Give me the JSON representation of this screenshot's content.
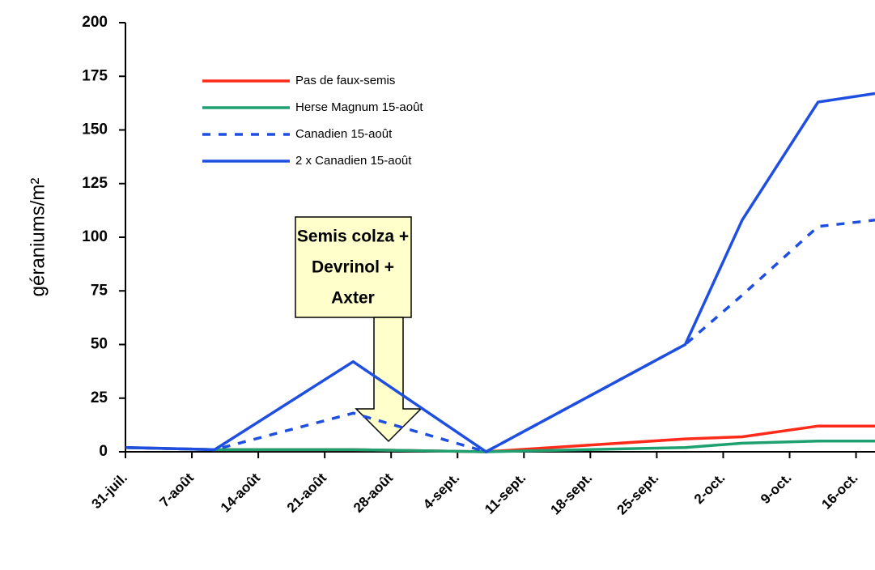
{
  "chart_data": {
    "type": "line",
    "y_label": "géraniums/m²",
    "xlim": [
      0,
      79
    ],
    "xticks": [
      {
        "value": 0,
        "label": "31-juil."
      },
      {
        "value": 7,
        "label": "7-août"
      },
      {
        "value": 14,
        "label": "14-août"
      },
      {
        "value": 21,
        "label": "21-août"
      },
      {
        "value": 28,
        "label": "28-août"
      },
      {
        "value": 35,
        "label": "4-sept."
      },
      {
        "value": 42,
        "label": "11-sept."
      },
      {
        "value": 49,
        "label": "18-sept."
      },
      {
        "value": 56,
        "label": "25-sept."
      },
      {
        "value": 63,
        "label": "2-oct."
      },
      {
        "value": 70,
        "label": "9-oct."
      },
      {
        "value": 77,
        "label": "16-oct."
      }
    ],
    "ylim": [
      0,
      200
    ],
    "yticks": [
      0,
      25,
      50,
      75,
      100,
      125,
      150,
      175,
      200
    ],
    "x": [
      0,
      9.4,
      24,
      38,
      59,
      65,
      73,
      79
    ],
    "series": [
      {
        "name": "Pas de faux-semis",
        "color": "#ff2a1a",
        "dash": "solid",
        "values": [
          2,
          1,
          1,
          0,
          6,
          7,
          12,
          12
        ]
      },
      {
        "name": "Herse Magnum 15-août",
        "color": "#1fa070",
        "dash": "solid",
        "values": [
          2,
          1,
          1,
          0,
          2,
          4,
          5,
          5
        ]
      },
      {
        "name": "Canadien 15-août",
        "color": "#1f4fe0",
        "dash": "dotted",
        "values": [
          2,
          1,
          18,
          0,
          50,
          73,
          105,
          108
        ]
      },
      {
        "name": "2 x Canadien 15-août",
        "color": "#1f4fe0",
        "dash": "solid",
        "values": [
          2,
          1,
          42,
          0,
          50,
          108,
          163,
          167
        ]
      }
    ],
    "annotation": [
      "Semis colza +",
      "Devrinol +",
      "Axter"
    ]
  }
}
